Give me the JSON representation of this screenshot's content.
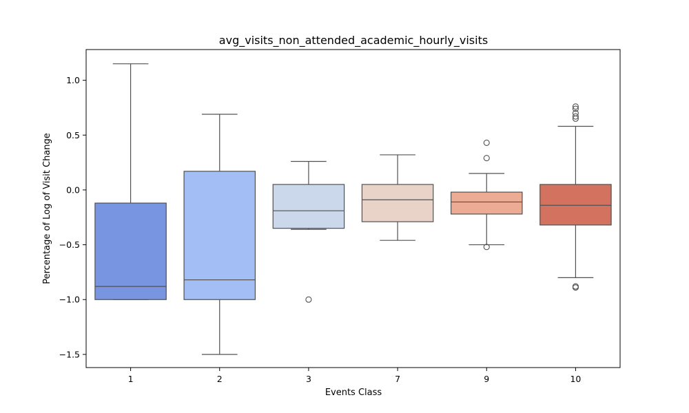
{
  "chart_data": {
    "type": "box",
    "title": "avg_visits_non_attended_academic_hourly_visits",
    "xlabel": "Events Class",
    "ylabel": "Percentage of Log of Visit Change",
    "ylim": [
      -1.62,
      1.28
    ],
    "yticks": [
      1.0,
      0.5,
      0.0,
      -0.5,
      -1.0,
      -1.5
    ],
    "ytick_labels": [
      "1.0",
      "0.5",
      "0.0",
      "−0.5",
      "−1.0",
      "−1.5"
    ],
    "grid": false,
    "categories": [
      "1",
      "2",
      "3",
      "7",
      "9",
      "10"
    ],
    "boxes": [
      {
        "category": "1",
        "whisker_low": -1.0,
        "q1": -1.0,
        "median": -0.88,
        "q3": -0.12,
        "whisker_high": 1.15,
        "outliers": [],
        "color": "#7895e1"
      },
      {
        "category": "2",
        "whisker_low": -1.5,
        "q1": -1.0,
        "median": -0.82,
        "q3": 0.17,
        "whisker_high": 0.69,
        "outliers": [],
        "color": "#a3bef4"
      },
      {
        "category": "3",
        "whisker_low": -0.36,
        "q1": -0.35,
        "median": -0.19,
        "q3": 0.05,
        "whisker_high": 0.26,
        "outliers": [
          -1.0
        ],
        "color": "#cbd8ec"
      },
      {
        "category": "7",
        "whisker_low": -0.46,
        "q1": -0.29,
        "median": -0.09,
        "q3": 0.05,
        "whisker_high": 0.32,
        "outliers": [],
        "color": "#e9d2c8"
      },
      {
        "category": "9",
        "whisker_low": -0.5,
        "q1": -0.22,
        "median": -0.11,
        "q3": -0.02,
        "whisker_high": 0.15,
        "outliers": [
          0.43,
          0.29,
          -0.52
        ],
        "color": "#ecac93"
      },
      {
        "category": "10",
        "whisker_low": -0.8,
        "q1": -0.32,
        "median": -0.14,
        "q3": 0.05,
        "whisker_high": 0.58,
        "outliers": [
          0.76,
          0.74,
          0.7,
          0.67,
          0.65,
          -0.88,
          -0.89
        ],
        "color": "#d3735f"
      }
    ]
  }
}
